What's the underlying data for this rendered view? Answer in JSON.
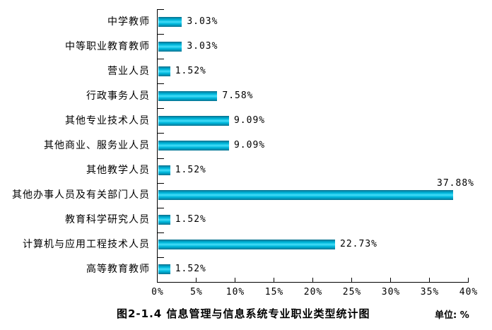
{
  "title": "图2-1.4 信息管理与信息系统专业职业类型统计图",
  "unit_label": "单位: %",
  "chart_data": {
    "type": "bar",
    "orientation": "horizontal",
    "title": "图2-1.4 信息管理与信息系统专业职业类型统计图",
    "unit": "%",
    "categories": [
      "中学教师",
      "中等职业教育教师",
      "营业人员",
      "行政事务人员",
      "其他专业技术人员",
      "其他商业、服务业人员",
      "其他教学人员",
      "其他办事人员及有关部门人员",
      "教育科学研究人员",
      "计算机与应用工程技术人员",
      "高等教育教师"
    ],
    "values": [
      3.03,
      3.03,
      1.52,
      7.58,
      9.09,
      9.09,
      1.52,
      37.88,
      1.52,
      22.73,
      1.52
    ],
    "value_labels": [
      "3.03%",
      "3.03%",
      "1.52%",
      "7.58%",
      "9.09%",
      "9.09%",
      "1.52%",
      "37.88%",
      "1.52%",
      "22.73%",
      "1.52%"
    ],
    "x_ticks": [
      "0%",
      "5%",
      "10%",
      "15%",
      "20%",
      "25%",
      "30%",
      "35%",
      "40%"
    ],
    "xlim": [
      0,
      40
    ],
    "grid": false,
    "legend": null,
    "colors": {
      "bar_edge": "#0a6a85",
      "bar_body": "#00b8dc",
      "bar_highlight": "#45ddf8",
      "axis": "#000000",
      "text": "#000000",
      "background": "#ffffff"
    }
  }
}
